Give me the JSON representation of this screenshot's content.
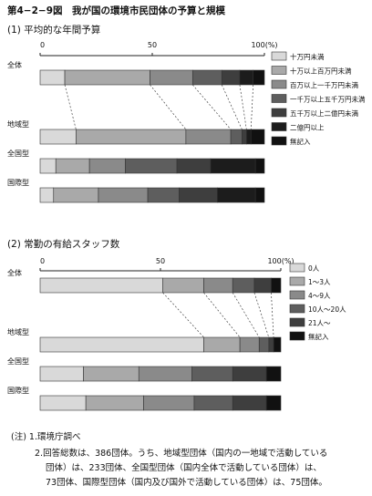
{
  "figure_title": "第4−2−9図　我が国の環境市民団体の予算と規模",
  "chart_data": [
    {
      "type": "bar",
      "stacked": true,
      "orientation": "horizontal",
      "title": "(1) 平均的な年間予算",
      "axis_ticks": [
        "0",
        "50",
        "100(%)"
      ],
      "xlim": [
        0,
        100
      ],
      "categories": [
        "全体",
        "地域型",
        "全国型",
        "国際型"
      ],
      "legend_position": "right",
      "series": [
        {
          "name": "十万円未満",
          "color": "#d9d9d9",
          "values": [
            11,
            16,
            7,
            6
          ]
        },
        {
          "name": "十万以上百万円未満",
          "color": "#a9a9a9",
          "values": [
            38,
            49,
            15,
            20
          ]
        },
        {
          "name": "百万以上一千万円未満",
          "color": "#8a8a8a",
          "values": [
            19,
            20,
            16,
            22
          ]
        },
        {
          "name": "一千万以上五千万円未満",
          "color": "#5e5e5e",
          "values": [
            13,
            5,
            23,
            14
          ]
        },
        {
          "name": "五千万以上二億円未満",
          "color": "#3e3e3e",
          "values": [
            8,
            2,
            15,
            17
          ]
        },
        {
          "name": "二億円以上",
          "color": "#1c1c1c",
          "values": [
            6,
            2,
            20,
            17
          ]
        },
        {
          "name": "無記入",
          "color": "#111111",
          "values": [
            5,
            6,
            4,
            4
          ]
        }
      ]
    },
    {
      "type": "bar",
      "stacked": true,
      "orientation": "horizontal",
      "title": "(2) 常勤の有給スタッフ数",
      "axis_ticks": [
        "0",
        "50",
        "100(%)"
      ],
      "xlim": [
        0,
        100
      ],
      "categories": [
        "全体",
        "地域型",
        "全国型",
        "国際型"
      ],
      "legend_position": "right",
      "series": [
        {
          "name": "0人",
          "color": "#d9d9d9",
          "values": [
            51,
            68,
            18,
            19
          ]
        },
        {
          "name": "1～3人",
          "color": "#a9a9a9",
          "values": [
            17,
            15,
            23,
            24
          ]
        },
        {
          "name": "4～9人",
          "color": "#8a8a8a",
          "values": [
            12,
            8,
            22,
            21
          ]
        },
        {
          "name": "10人～20人",
          "color": "#5e5e5e",
          "values": [
            9,
            4,
            17,
            16
          ]
        },
        {
          "name": "21人～",
          "color": "#3e3e3e",
          "values": [
            7,
            2,
            14,
            14
          ]
        },
        {
          "name": "無記入",
          "color": "#111111",
          "values": [
            4,
            3,
            6,
            6
          ]
        }
      ]
    }
  ],
  "notes": [
    "(注) 1.環境庁調べ",
    "2.回答総数は、386団体。うち、地域型団体（国内の一地域で活動している",
    "団体）は、233団体、全国型団体（国内全体で活動している団体）は、",
    "73団体、国際型団体（国内及び国外で活動している団体）は、75団体。"
  ]
}
